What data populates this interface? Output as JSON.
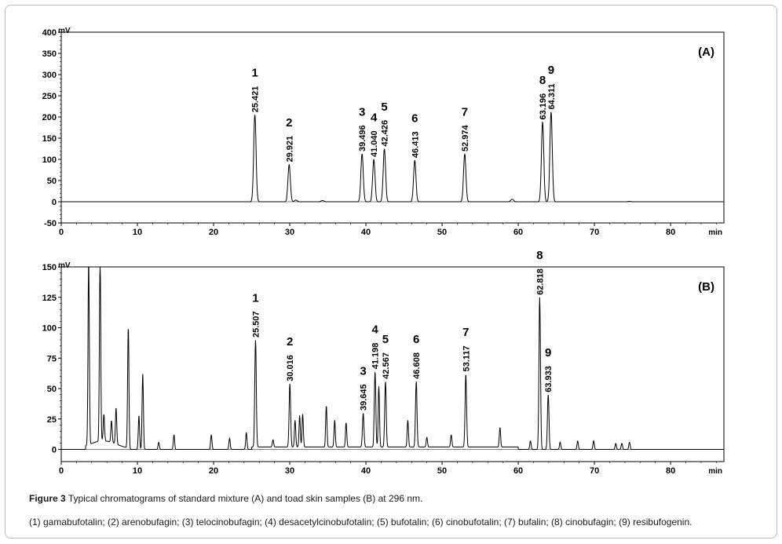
{
  "figure": {
    "label": "Figure 3",
    "caption": "Typical chromatograms of standard mixture (A) and toad skin samples (B) at 296 nm.",
    "legend": "(1) gamabufotalin; (2) arenobufagin; (3) telocinobufagin; (4) desacetylcinobufotalin; (5) bufotalin; (6) cinobufotalin; (7) bufalin; (8) cinobufagin; (9) resibufogenin."
  },
  "chart_data": [
    {
      "type": "line",
      "panel_label": "(A)",
      "ylabel": "mV",
      "xlabel": "min",
      "xlim": [
        0,
        87
      ],
      "ylim": [
        -50,
        400
      ],
      "xticks": [
        0,
        10,
        20,
        30,
        40,
        50,
        60,
        70,
        80
      ],
      "yticks": [
        -50,
        0,
        50,
        100,
        150,
        200,
        250,
        300,
        350,
        400
      ],
      "peaks": [
        {
          "number": "1",
          "rt": "25.421",
          "x": 25.421,
          "height": 205
        },
        {
          "number": "2",
          "rt": "29.921",
          "x": 29.921,
          "height": 88
        },
        {
          "number": "3",
          "rt": "39.496",
          "x": 39.496,
          "height": 113
        },
        {
          "number": "4",
          "rt": "41.040",
          "x": 41.04,
          "height": 100
        },
        {
          "number": "5",
          "rt": "42.426",
          "x": 42.426,
          "height": 125
        },
        {
          "number": "6",
          "rt": "46.413",
          "x": 46.413,
          "height": 98
        },
        {
          "number": "7",
          "rt": "52.974",
          "x": 52.974,
          "height": 113
        },
        {
          "number": "8",
          "rt": "63.196",
          "x": 63.196,
          "height": 188
        },
        {
          "number": "9",
          "rt": "64.311",
          "x": 64.311,
          "height": 212
        }
      ],
      "minor_peaks": [
        {
          "x": 30.8,
          "height": 4
        },
        {
          "x": 34.3,
          "height": 3
        },
        {
          "x": 59.2,
          "height": 6
        },
        {
          "x": 74.6,
          "height": 1
        }
      ]
    },
    {
      "type": "line",
      "panel_label": "(B)",
      "ylabel": "mV",
      "xlabel": "min",
      "xlim": [
        0,
        87
      ],
      "ylim": [
        -10,
        150
      ],
      "xticks": [
        0,
        10,
        20,
        30,
        40,
        50,
        60,
        70,
        80
      ],
      "yticks": [
        0,
        25,
        50,
        75,
        100,
        125,
        150
      ],
      "peaks": [
        {
          "number": "1",
          "rt": "25.507",
          "x": 25.507,
          "height": 88
        },
        {
          "number": "2",
          "rt": "30.016",
          "x": 30.016,
          "height": 52
        },
        {
          "number": "3",
          "rt": "39.645",
          "x": 39.645,
          "height": 28
        },
        {
          "number": "4",
          "rt": "41.198",
          "x": 41.198,
          "height": 62
        },
        {
          "number": "5",
          "rt": "42.567",
          "x": 42.567,
          "height": 54
        },
        {
          "number": "6",
          "rt": "46.608",
          "x": 46.608,
          "height": 54
        },
        {
          "number": "7",
          "rt": "53.117",
          "x": 53.117,
          "height": 60
        },
        {
          "number": "8",
          "rt": "62.818",
          "x": 62.818,
          "height": 125
        },
        {
          "number": "9",
          "rt": "63.933",
          "x": 63.933,
          "height": 45
        }
      ],
      "minor_peaks": [
        {
          "x": 3.6,
          "height": 150
        },
        {
          "x": 5.1,
          "height": 150
        },
        {
          "x": 5.6,
          "height": 22
        },
        {
          "x": 6.6,
          "height": 18
        },
        {
          "x": 7.2,
          "height": 30
        },
        {
          "x": 8.8,
          "height": 100
        },
        {
          "x": 10.2,
          "height": 28
        },
        {
          "x": 10.7,
          "height": 62
        },
        {
          "x": 12.8,
          "height": 6
        },
        {
          "x": 14.8,
          "height": 12
        },
        {
          "x": 19.7,
          "height": 12
        },
        {
          "x": 22.1,
          "height": 9
        },
        {
          "x": 24.3,
          "height": 14
        },
        {
          "x": 27.8,
          "height": 6
        },
        {
          "x": 30.7,
          "height": 22
        },
        {
          "x": 31.3,
          "height": 26
        },
        {
          "x": 31.7,
          "height": 27
        },
        {
          "x": 34.8,
          "height": 34
        },
        {
          "x": 35.9,
          "height": 22
        },
        {
          "x": 37.4,
          "height": 20
        },
        {
          "x": 41.7,
          "height": 50
        },
        {
          "x": 45.5,
          "height": 22
        },
        {
          "x": 48.0,
          "height": 8
        },
        {
          "x": 51.2,
          "height": 10
        },
        {
          "x": 57.6,
          "height": 16
        },
        {
          "x": 61.6,
          "height": 7
        },
        {
          "x": 65.5,
          "height": 6
        },
        {
          "x": 67.8,
          "height": 7
        },
        {
          "x": 69.9,
          "height": 7
        },
        {
          "x": 72.8,
          "height": 5
        },
        {
          "x": 73.6,
          "height": 5
        },
        {
          "x": 74.6,
          "height": 6
        }
      ]
    }
  ]
}
